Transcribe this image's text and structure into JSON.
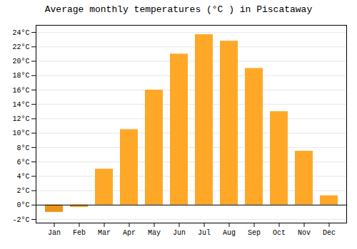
{
  "chart_data": {
    "type": "bar",
    "title": "Average monthly temperatures (°C ) in Piscataway",
    "categories": [
      "Jan",
      "Feb",
      "Mar",
      "Apr",
      "May",
      "Jun",
      "Jul",
      "Aug",
      "Sep",
      "Oct",
      "Nov",
      "Dec"
    ],
    "values": [
      -1.0,
      -0.3,
      5.0,
      10.5,
      16.0,
      21.0,
      23.7,
      22.8,
      19.0,
      13.0,
      7.5,
      1.3
    ],
    "colors": [
      "#E8951A",
      "#E8951A",
      "#FFA828",
      "#FFA828",
      "#FFA828",
      "#FFA828",
      "#FFA828",
      "#FFA828",
      "#FFA828",
      "#FFA828",
      "#FFA828",
      "#FFA828"
    ],
    "ylim": [
      -2.5,
      25
    ],
    "yticks": [
      {
        "value": -2,
        "label": "-2°C"
      },
      {
        "value": 0,
        "label": "0°C"
      },
      {
        "value": 2,
        "label": "2°C"
      },
      {
        "value": 4,
        "label": "4°C"
      },
      {
        "value": 6,
        "label": "6°C"
      },
      {
        "value": 8,
        "label": "8°C"
      },
      {
        "value": 10,
        "label": "10°C"
      },
      {
        "value": 12,
        "label": "12°C"
      },
      {
        "value": 14,
        "label": "14°C"
      },
      {
        "value": 16,
        "label": "16°C"
      },
      {
        "value": 18,
        "label": "18°C"
      },
      {
        "value": 20,
        "label": "20°C"
      },
      {
        "value": 22,
        "label": "22°C"
      },
      {
        "value": 24,
        "label": "24°C"
      }
    ],
    "grid": true
  }
}
